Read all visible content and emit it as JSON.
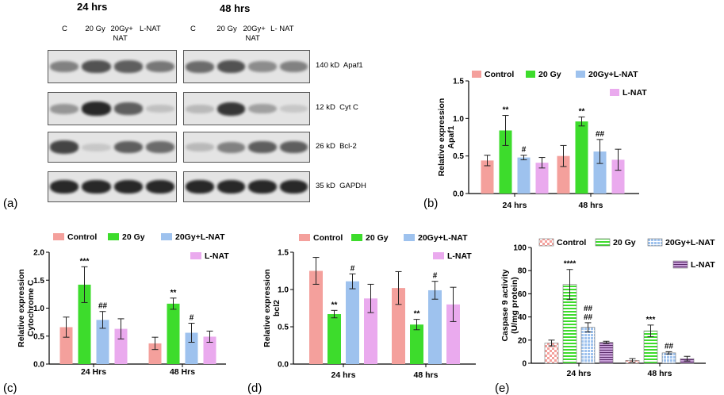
{
  "panel_a": {
    "letter": "(a)",
    "headers": [
      "24 hrs",
      "48 hrs"
    ],
    "lanes_24": [
      "C",
      "20 Gy",
      "20Gy+\nNAT",
      "L-NAT"
    ],
    "lanes_48": [
      "C",
      "20 Gy",
      "20Gy+\nNAT",
      "L- NAT"
    ],
    "row_labels": [
      "140 kD  Apaf1",
      "12 kD  Cyt C",
      "26 kD  Bcl-2",
      "35 kD  GAPDH"
    ],
    "band_intensity": [
      [
        [
          0.6,
          0.8,
          0.75,
          0.65
        ],
        [
          0.7,
          0.8,
          0.55,
          0.6
        ]
      ],
      [
        [
          0.5,
          0.95,
          0.75,
          0.25
        ],
        [
          0.3,
          0.9,
          0.45,
          0.2
        ]
      ],
      [
        [
          0.85,
          0.2,
          0.75,
          0.7
        ],
        [
          0.3,
          0.6,
          0.75,
          0.75
        ]
      ],
      [
        [
          0.95,
          0.95,
          0.95,
          0.95
        ],
        [
          0.95,
          0.95,
          0.95,
          0.95
        ]
      ]
    ]
  },
  "colors": {
    "control": "#f4a09c",
    "gy20": "#3ddc2c",
    "gy20_lnat": "#9ec2ee",
    "lnat": "#eaaaee"
  },
  "chart_data": [
    {
      "id": "b",
      "letter": "(b)",
      "type": "bar",
      "categories": [
        "24 hrs",
        "48 hrs"
      ],
      "ylabel": "Relative expression\nApaf1",
      "ylim": [
        0,
        1.5
      ],
      "yticks": [
        "0.0",
        "0.5",
        "1.0",
        "1.5"
      ],
      "series": [
        {
          "name": "Control",
          "values": [
            0.44,
            0.5
          ],
          "errors": [
            0.07,
            0.14
          ],
          "marks": [
            "",
            ""
          ]
        },
        {
          "name": "20 Gy",
          "values": [
            0.84,
            0.96
          ],
          "errors": [
            0.2,
            0.06
          ],
          "marks": [
            "**",
            "**"
          ]
        },
        {
          "name": "20Gy+L-NAT",
          "values": [
            0.48,
            0.56
          ],
          "errors": [
            0.03,
            0.16
          ],
          "marks": [
            "#",
            "##"
          ]
        },
        {
          "name": "L-NAT",
          "values": [
            0.41,
            0.45
          ],
          "errors": [
            0.07,
            0.14
          ],
          "marks": [
            "",
            ""
          ]
        }
      ]
    },
    {
      "id": "c",
      "letter": "(c)",
      "type": "bar",
      "categories": [
        "24 Hrs",
        "48 Hrs"
      ],
      "ylabel": "Relative expression\nCytochrome C",
      "ylim": [
        0,
        2.0
      ],
      "yticks": [
        "0.0",
        "0.5",
        "1.0",
        "1.5",
        "2.0"
      ],
      "series": [
        {
          "name": "Control",
          "values": [
            0.66,
            0.37
          ],
          "errors": [
            0.18,
            0.11
          ],
          "marks": [
            "",
            ""
          ]
        },
        {
          "name": "20 Gy",
          "values": [
            1.42,
            1.08
          ],
          "errors": [
            0.32,
            0.1
          ],
          "marks": [
            "***",
            "**"
          ]
        },
        {
          "name": "20Gy+L-NAT",
          "values": [
            0.79,
            0.56
          ],
          "errors": [
            0.15,
            0.17
          ],
          "marks": [
            "##",
            "#"
          ]
        },
        {
          "name": "L-NAT",
          "values": [
            0.63,
            0.49
          ],
          "errors": [
            0.18,
            0.1
          ],
          "marks": [
            "",
            ""
          ]
        }
      ]
    },
    {
      "id": "d",
      "letter": "(d)",
      "type": "bar",
      "categories": [
        "24 hrs",
        "48 hrs"
      ],
      "ylabel": "Relative expression\nbcl2",
      "ylim": [
        0,
        1.5
      ],
      "yticks": [
        "0.0",
        "0.5",
        "1.0",
        "1.5"
      ],
      "series": [
        {
          "name": "Control",
          "values": [
            1.25,
            1.02
          ],
          "errors": [
            0.18,
            0.22
          ],
          "marks": [
            "",
            ""
          ]
        },
        {
          "name": "20 Gy",
          "values": [
            0.67,
            0.53
          ],
          "errors": [
            0.05,
            0.07
          ],
          "marks": [
            "**",
            "**"
          ]
        },
        {
          "name": "20Gy+L-NAT",
          "values": [
            1.11,
            0.99
          ],
          "errors": [
            0.1,
            0.12
          ],
          "marks": [
            "#",
            "#"
          ]
        },
        {
          "name": "L-NAT",
          "values": [
            0.88,
            0.8
          ],
          "errors": [
            0.19,
            0.23
          ],
          "marks": [
            "",
            ""
          ]
        }
      ]
    },
    {
      "id": "e",
      "letter": "(e)",
      "type": "bar",
      "categories": [
        "24 hrs",
        "48 hrs"
      ],
      "ylabel": "Caspase 9 activity\n(U/mg protein)",
      "ylim": [
        0,
        100
      ],
      "yticks": [
        "0",
        "20",
        "40",
        "60",
        "80",
        "100"
      ],
      "series": [
        {
          "name": "Control",
          "values": [
            17.5,
            2.5
          ],
          "errors": [
            2.5,
            1.5
          ],
          "marks": [
            "",
            ""
          ]
        },
        {
          "name": "20 Gy",
          "values": [
            68,
            28
          ],
          "errors": [
            13,
            5
          ],
          "marks": [
            "****",
            "***"
          ]
        },
        {
          "name": "20Gy+L-NAT",
          "values": [
            31,
            9
          ],
          "errors": [
            4,
            1
          ],
          "marks": [
            "##\n##",
            "##"
          ]
        },
        {
          "name": "L-NAT",
          "values": [
            18,
            4
          ],
          "errors": [
            1,
            2
          ],
          "marks": [
            "",
            ""
          ]
        }
      ]
    }
  ]
}
